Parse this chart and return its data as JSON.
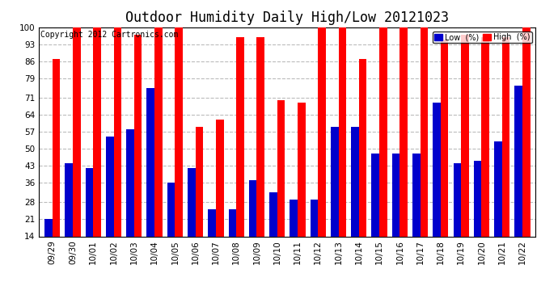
{
  "title": "Outdoor Humidity Daily High/Low 20121023",
  "copyright": "Copyright 2012 Cartronics.com",
  "labels": [
    "09/29",
    "09/30",
    "10/01",
    "10/02",
    "10/03",
    "10/04",
    "10/05",
    "10/06",
    "10/07",
    "10/08",
    "10/09",
    "10/10",
    "10/11",
    "10/12",
    "10/13",
    "10/14",
    "10/15",
    "10/16",
    "10/17",
    "10/18",
    "10/19",
    "10/20",
    "10/21",
    "10/22"
  ],
  "high": [
    87,
    100,
    100,
    100,
    97,
    100,
    100,
    59,
    62,
    96,
    96,
    70,
    69,
    100,
    100,
    87,
    100,
    100,
    100,
    95,
    97,
    96,
    96,
    100
  ],
  "low": [
    21,
    44,
    42,
    55,
    58,
    75,
    36,
    42,
    25,
    25,
    37,
    32,
    29,
    29,
    59,
    59,
    48,
    48,
    48,
    69,
    44,
    45,
    53,
    76
  ],
  "bar_width": 0.38,
  "ylim": [
    14,
    100
  ],
  "yticks": [
    14,
    21,
    28,
    36,
    43,
    50,
    57,
    64,
    71,
    79,
    86,
    93,
    100
  ],
  "high_color": "#ff0000",
  "low_color": "#0000cc",
  "bg_color": "#ffffff",
  "grid_color": "#bbbbbb",
  "title_fontsize": 12,
  "tick_fontsize": 7.5,
  "copyright_fontsize": 7,
  "legend_high_label": "High  (%)",
  "legend_low_label": "Low  (%)"
}
